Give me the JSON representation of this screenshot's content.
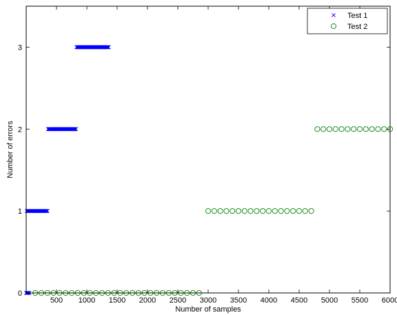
{
  "chart_data": {
    "type": "scatter",
    "title": "",
    "xlabel": "Number of samples",
    "ylabel": "Number of errors",
    "xlim": [
      0,
      6000
    ],
    "ylim": [
      0,
      3.5
    ],
    "grid": false,
    "legend_position": "top-right",
    "x_ticks": [
      500,
      1000,
      1500,
      2000,
      2500,
      3000,
      3500,
      4000,
      4500,
      5000,
      5500,
      6000
    ],
    "x_tick_labels": [
      "500",
      "1000",
      "1500",
      "2000",
      "2500",
      "3000",
      "3500",
      "4000",
      "4500",
      "5000",
      "5500",
      "6000"
    ],
    "y_ticks": [
      0,
      1,
      2,
      3
    ],
    "y_tick_labels": [
      "0",
      "1",
      "2",
      "3"
    ],
    "series": [
      {
        "name": "Test 1",
        "marker": "x",
        "color": "#0000ff",
        "segments": [
          {
            "y": 0,
            "x_start": 0,
            "x_end": 50,
            "step": 10
          },
          {
            "y": 1,
            "x_start": 10,
            "x_end": 350,
            "step": 10
          },
          {
            "y": 2,
            "x_start": 360,
            "x_end": 820,
            "step": 10
          },
          {
            "y": 3,
            "x_start": 830,
            "x_end": 1360,
            "step": 10
          }
        ]
      },
      {
        "name": "Test 2",
        "marker": "o",
        "color": "#008000",
        "x": [
          150,
          250,
          350,
          450,
          550,
          650,
          750,
          850,
          950,
          1050,
          1150,
          1250,
          1350,
          1450,
          1550,
          1650,
          1750,
          1850,
          1950,
          2050,
          2150,
          2250,
          2350,
          2450,
          2550,
          2650,
          2750,
          2850,
          3000,
          3100,
          3200,
          3300,
          3400,
          3500,
          3600,
          3700,
          3800,
          3900,
          4000,
          4100,
          4200,
          4300,
          4400,
          4500,
          4600,
          4700,
          4800,
          4900,
          5000,
          5100,
          5200,
          5300,
          5400,
          5500,
          5600,
          5700,
          5800,
          5900,
          6000
        ],
        "y": [
          0,
          0,
          0,
          0,
          0,
          0,
          0,
          0,
          0,
          0,
          0,
          0,
          0,
          0,
          0,
          0,
          0,
          0,
          0,
          0,
          0,
          0,
          0,
          0,
          0,
          0,
          0,
          0,
          1,
          1,
          1,
          1,
          1,
          1,
          1,
          1,
          1,
          1,
          1,
          1,
          1,
          1,
          1,
          1,
          1,
          1,
          2,
          2,
          2,
          2,
          2,
          2,
          2,
          2,
          2,
          2,
          2,
          2,
          2
        ]
      }
    ]
  }
}
